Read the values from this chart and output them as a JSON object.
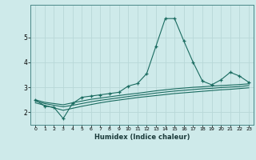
{
  "xlabel": "Humidex (Indice chaleur)",
  "bg_color": "#ceeaea",
  "line_color": "#1a6b60",
  "grid_color": "#b8d8d8",
  "xlim": [
    -0.5,
    23.5
  ],
  "ylim": [
    1.5,
    6.3
  ],
  "xticks": [
    0,
    1,
    2,
    3,
    4,
    5,
    6,
    7,
    8,
    9,
    10,
    11,
    12,
    13,
    14,
    15,
    16,
    17,
    18,
    19,
    20,
    21,
    22,
    23
  ],
  "yticks": [
    2,
    3,
    4,
    5
  ],
  "main_line": [
    2.5,
    2.25,
    2.2,
    1.75,
    2.35,
    2.6,
    2.65,
    2.7,
    2.75,
    2.8,
    3.05,
    3.15,
    3.55,
    4.65,
    5.75,
    5.75,
    4.85,
    4.0,
    3.25,
    3.1,
    3.3,
    3.6,
    3.45,
    3.2
  ],
  "line2": [
    2.5,
    2.4,
    2.35,
    2.3,
    2.38,
    2.45,
    2.52,
    2.57,
    2.62,
    2.67,
    2.72,
    2.76,
    2.81,
    2.86,
    2.9,
    2.94,
    2.97,
    3.0,
    3.02,
    3.05,
    3.07,
    3.09,
    3.11,
    3.14
  ],
  "line3": [
    2.45,
    2.35,
    2.28,
    2.22,
    2.28,
    2.35,
    2.42,
    2.48,
    2.53,
    2.58,
    2.63,
    2.68,
    2.72,
    2.77,
    2.81,
    2.85,
    2.88,
    2.91,
    2.94,
    2.96,
    2.99,
    3.01,
    3.03,
    3.07
  ],
  "line4": [
    2.38,
    2.28,
    2.18,
    2.08,
    2.16,
    2.24,
    2.31,
    2.38,
    2.44,
    2.49,
    2.54,
    2.59,
    2.63,
    2.67,
    2.71,
    2.75,
    2.78,
    2.81,
    2.84,
    2.87,
    2.9,
    2.92,
    2.95,
    2.98
  ]
}
